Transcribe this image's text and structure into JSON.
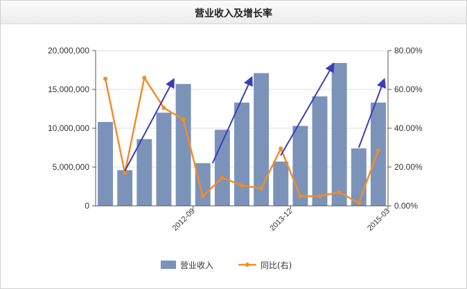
{
  "header": {
    "title": "营业收入及增长率"
  },
  "chart_data": {
    "type": "bar",
    "title": "营业收入及增长率",
    "x": [
      "",
      "",
      "",
      "",
      "2012-09",
      "",
      "",
      "",
      "",
      "2013-12",
      "",
      "",
      "",
      "",
      "2015-03"
    ],
    "series": [
      {
        "name": "营业收入",
        "type": "bar",
        "axis": "left",
        "color": "#7b93b9",
        "values": [
          10800000,
          4600000,
          8600000,
          12000000,
          15700000,
          5500000,
          9800000,
          13300000,
          17100000,
          5700000,
          10300000,
          14100000,
          18400000,
          7400000,
          13300000
        ]
      },
      {
        "name": "同比(右)",
        "type": "line",
        "axis": "right",
        "color": "#f28c28",
        "values": [
          65.5,
          17.0,
          66.0,
          50.5,
          44.5,
          5.0,
          14.5,
          10.5,
          9.0,
          29.5,
          5.0,
          5.0,
          7.0,
          1.5,
          28.5
        ]
      }
    ],
    "y_left": {
      "range": [
        0,
        20000000
      ],
      "ticks": [
        "0",
        "5,000,000",
        "10,000,000",
        "15,000,000",
        "20,000,000"
      ]
    },
    "y_right": {
      "range": [
        0,
        80
      ],
      "ticks": [
        "0.00%",
        "20.00%",
        "40.00%",
        "60.00%",
        "80.00%"
      ]
    },
    "grid": "horizontal",
    "legend": "bottom",
    "annotations": [
      {
        "type": "arrow",
        "from_index": 1,
        "from_value": 18.0,
        "to_index": 3.5,
        "to_value": 65.0
      },
      {
        "type": "arrow",
        "from_index": 5.5,
        "from_value": 22.0,
        "to_index": 7.5,
        "to_value": 66.0
      },
      {
        "type": "arrow",
        "from_index": 9.0,
        "from_value": 26.0,
        "to_index": 11.7,
        "to_value": 73.0
      },
      {
        "type": "arrow",
        "from_index": 13.0,
        "from_value": 30.0,
        "to_index": 14.3,
        "to_value": 65.0
      }
    ]
  }
}
